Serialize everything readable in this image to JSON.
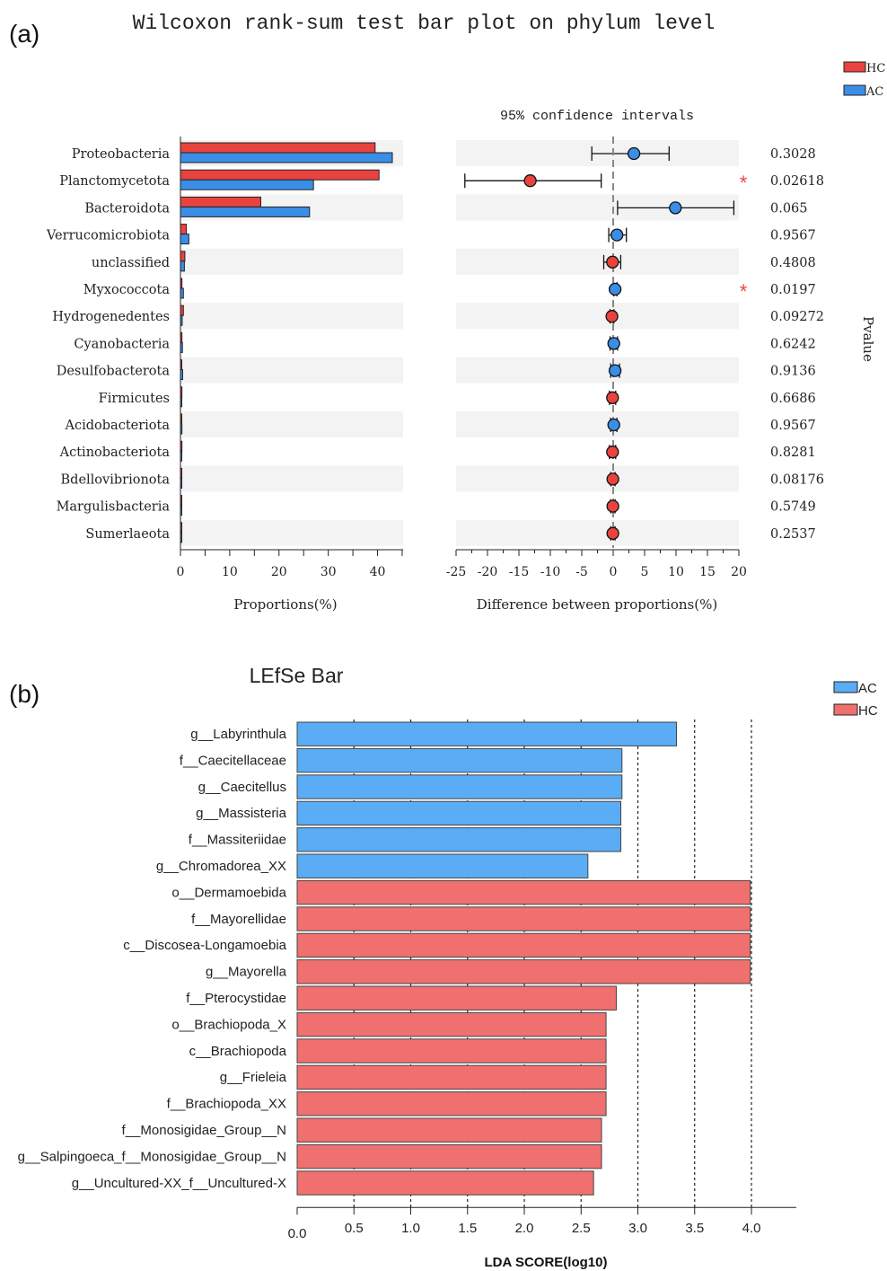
{
  "colors": {
    "hc": "#e8433f",
    "ac": "#3a8ee6",
    "lefse_ac": "#5aacf5",
    "lefse_hc": "#f07070",
    "stripe": "#f3f3f3",
    "star": "#ee4444"
  },
  "panel_a": {
    "label": "(a)",
    "title": "Wilcoxon rank-sum test bar plot on phylum level",
    "legend": [
      {
        "name": "HC",
        "color_key": "hc"
      },
      {
        "name": "AC",
        "color_key": "ac"
      }
    ],
    "ci_title": "95% confidence intervals",
    "pvalue_label": "Pvalue",
    "significance_mark": "*"
  },
  "panel_b": {
    "label": "(b)",
    "title": "LEfSe Bar",
    "legend": [
      {
        "name": "AC",
        "color_key": "lefse_ac"
      },
      {
        "name": "HC",
        "color_key": "lefse_hc"
      }
    ]
  },
  "chart_data": [
    {
      "type": "bar",
      "orientation": "horizontal",
      "xlabel": "Proportions(%)",
      "xlim": [
        0,
        45
      ],
      "xticks": [
        0,
        10,
        20,
        30,
        40
      ],
      "categories": [
        "Proteobacteria",
        "Planctomycetota",
        "Bacteroidota",
        "Verrucomicrobiota",
        "unclassified",
        "Myxococcota",
        "Hydrogenedentes",
        "Cyanobacteria",
        "Desulfobacterota",
        "Firmicutes",
        "Acidobacteriota",
        "Actinobacteriota",
        "Bdellovibrionota",
        "Margulisbacteria",
        "Sumerlaeota"
      ],
      "series": [
        {
          "name": "HC",
          "values": [
            39.5,
            40.3,
            16.3,
            1.2,
            0.9,
            0.3,
            0.6,
            0.3,
            0.25,
            0.3,
            0.25,
            0.3,
            0.25,
            0.2,
            0.2
          ]
        },
        {
          "name": "AC",
          "values": [
            43.0,
            27.0,
            26.2,
            1.7,
            0.8,
            0.6,
            0.35,
            0.4,
            0.45,
            0.25,
            0.3,
            0.2,
            0.2,
            0.15,
            0.15
          ]
        }
      ]
    },
    {
      "type": "scatter",
      "subtype": "error-bar",
      "xlabel": "Difference between proportions(%)",
      "xlim": [
        -25,
        20
      ],
      "xticks": [
        -25,
        -20,
        -15,
        -10,
        -5,
        0,
        5,
        10,
        15,
        20
      ],
      "reference_line": 0,
      "categories": [
        "Proteobacteria",
        "Planctomycetota",
        "Bacteroidota",
        "Verrucomicrobiota",
        "unclassified",
        "Myxococcota",
        "Hydrogenedentes",
        "Cyanobacteria",
        "Desulfobacterota",
        "Firmicutes",
        "Acidobacteriota",
        "Actinobacteriota",
        "Bdellovibrionota",
        "Margulisbacteria",
        "Sumerlaeota"
      ],
      "points": [
        {
          "diff": 3.3,
          "lo": -3.4,
          "hi": 8.9,
          "group": "AC"
        },
        {
          "diff": -13.2,
          "lo": -23.6,
          "hi": -1.9,
          "group": "HC"
        },
        {
          "diff": 9.9,
          "lo": 0.7,
          "hi": 19.2,
          "group": "AC"
        },
        {
          "diff": 0.6,
          "lo": -0.7,
          "hi": 2.1,
          "group": "AC"
        },
        {
          "diff": -0.1,
          "lo": -1.5,
          "hi": 1.2,
          "group": "HC"
        },
        {
          "diff": 0.3,
          "lo": 0.1,
          "hi": 0.6,
          "group": "AC"
        },
        {
          "diff": -0.2,
          "lo": -0.5,
          "hi": 0.1,
          "group": "HC"
        },
        {
          "diff": 0.1,
          "lo": -0.5,
          "hi": 0.7,
          "group": "AC"
        },
        {
          "diff": 0.3,
          "lo": -0.4,
          "hi": 1.0,
          "group": "AC"
        },
        {
          "diff": -0.1,
          "lo": -0.6,
          "hi": 0.4,
          "group": "HC"
        },
        {
          "diff": 0.1,
          "lo": -0.4,
          "hi": 0.6,
          "group": "AC"
        },
        {
          "diff": -0.1,
          "lo": -0.6,
          "hi": 0.4,
          "group": "HC"
        },
        {
          "diff": -0.05,
          "lo": -0.4,
          "hi": 0.3,
          "group": "HC"
        },
        {
          "diff": -0.05,
          "lo": -0.4,
          "hi": 0.3,
          "group": "HC"
        },
        {
          "diff": -0.05,
          "lo": -0.4,
          "hi": 0.3,
          "group": "HC"
        }
      ],
      "pvalues": [
        "0.3028",
        "0.02618",
        "0.065",
        "0.9567",
        "0.4808",
        "0.0197",
        "0.09272",
        "0.6242",
        "0.9136",
        "0.6686",
        "0.9567",
        "0.8281",
        "0.08176",
        "0.5749",
        "0.2537"
      ],
      "significant": [
        false,
        true,
        false,
        false,
        false,
        true,
        false,
        false,
        false,
        false,
        false,
        false,
        false,
        false,
        false
      ]
    },
    {
      "type": "bar",
      "orientation": "horizontal",
      "xlabel": "LDA SCORE(log10)",
      "xlim": [
        0,
        4.4
      ],
      "xticks": [
        0.0,
        0.5,
        1.0,
        1.5,
        2.0,
        2.5,
        3.0,
        3.5,
        4.0
      ],
      "xtick_labels": [
        "0.0",
        "0.5",
        "1.0",
        "1.5",
        "2.0",
        "2.5",
        "3.0",
        "3.5",
        "4.0"
      ],
      "gridlines": [
        0.5,
        1.0,
        1.5,
        2.0,
        2.5,
        3.0,
        3.5,
        4.0
      ],
      "categories": [
        "g__Labyrinthula",
        "f__Caecitellaceae",
        "g__Caecitellus",
        "g__Massisteria",
        "f__Massiteriidae",
        "g__Chromadorea_XX",
        "o__Dermamoebida",
        "f__Mayorellidae",
        "c__Discosea-Longamoebia",
        "g__Mayorella",
        "f__Pterocystidae",
        "o__Brachiopoda_X",
        "c__Brachiopoda",
        "g__Frieleia",
        "f__Brachiopoda_XX",
        "f__Monosigidae_Group__N",
        "g__Salpingoeca_f__Monosigidae_Group__N",
        "g__Uncultured-XX_f__Uncultured-X"
      ],
      "values": [
        3.34,
        2.86,
        2.86,
        2.85,
        2.85,
        2.56,
        3.99,
        3.99,
        3.99,
        3.99,
        2.81,
        2.72,
        2.72,
        2.72,
        2.72,
        2.68,
        2.68,
        2.61
      ],
      "groups": [
        "AC",
        "AC",
        "AC",
        "AC",
        "AC",
        "AC",
        "HC",
        "HC",
        "HC",
        "HC",
        "HC",
        "HC",
        "HC",
        "HC",
        "HC",
        "HC",
        "HC",
        "HC"
      ]
    }
  ]
}
